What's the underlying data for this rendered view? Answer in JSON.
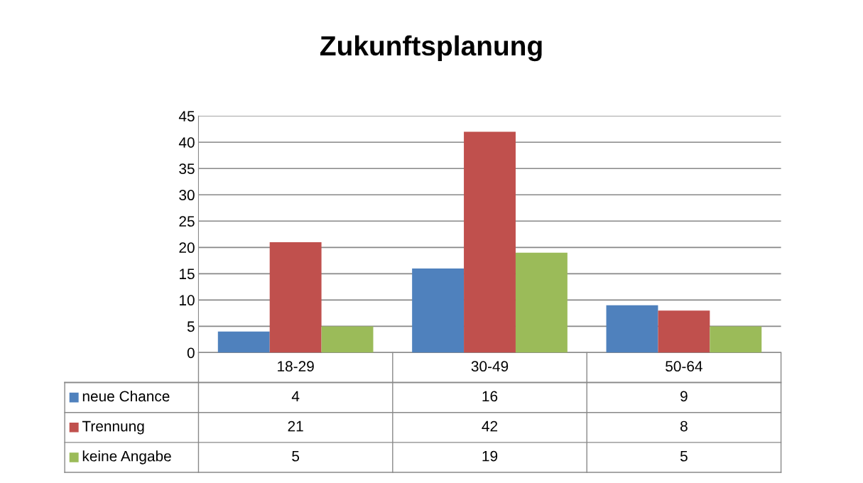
{
  "chart_data": {
    "type": "bar",
    "title": "Zukunftsplanung",
    "categories": [
      "18-29",
      "30-49",
      "50-64"
    ],
    "series": [
      {
        "name": "neue Chance",
        "color": "#4f81bd",
        "values": [
          4,
          16,
          9
        ]
      },
      {
        "name": "Trennung",
        "color": "#c0504d",
        "values": [
          21,
          42,
          8
        ]
      },
      {
        "name": "keine Angabe",
        "color": "#9bbb59",
        "values": [
          5,
          19,
          5
        ]
      }
    ],
    "ylim": [
      0,
      45
    ],
    "yticks": [
      0,
      5,
      10,
      15,
      20,
      25,
      30,
      35,
      40,
      45
    ],
    "grid": "y",
    "legend": "bottom",
    "data_labels": true,
    "tick_labels": "y"
  }
}
